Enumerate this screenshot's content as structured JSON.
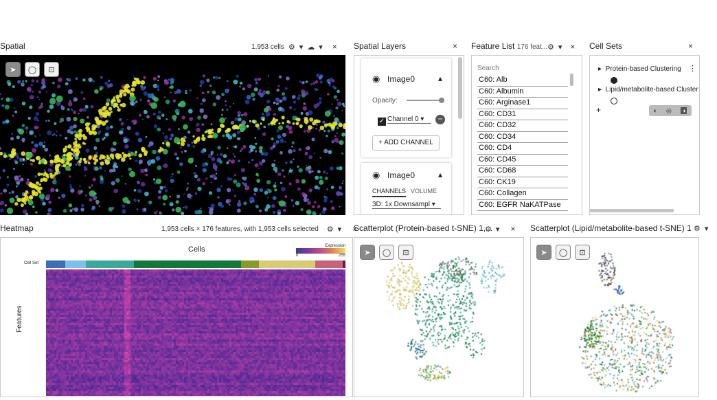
{
  "spatial": {
    "title": "Spatial",
    "cell_count": "1,953 cells"
  },
  "spatial_layers": {
    "title": "Spatial Layers",
    "image0_label": "Image0",
    "opacity_label": "Opacity:",
    "channel_label": "Channel 0",
    "add_channel": "ADD CHANNEL",
    "image0b_label": "Image0",
    "tab_channels": "CHANNELS",
    "tab_volume": "VOLUME",
    "resolution_value": "3D: 1x Downsampl"
  },
  "feature_list": {
    "title": "Feature List",
    "count": "176 feat...",
    "search_placeholder": "Search",
    "items": [
      "C60: Alb",
      "C60: Albumin",
      "C60: Arginase1",
      "C60: CD31",
      "C60: CD32",
      "C60: CD34",
      "C60: CD4",
      "C60: CD45",
      "C60: CD68",
      "C60: CK19",
      "C60: Collagen",
      "C60: EGFR NaKATPase"
    ]
  },
  "cell_sets": {
    "title": "Cell Sets",
    "items": [
      {
        "label": "Protein-based Clustering",
        "color": "#222222"
      },
      {
        "label": "Lipid/metabolite-based Cluster",
        "color": "#ffffff"
      }
    ],
    "add_symbol": "+"
  },
  "heatmap": {
    "title": "Heatmap",
    "info": "1,953 cells × 176 features, with 1,953 cells selected",
    "col_label": "Cells",
    "row_label": "Features",
    "cellset_label": "Cell Set",
    "legend_title": "Expression",
    "legend_min": "0",
    "legend_max": "255",
    "colorbar": [
      {
        "color": "#3d6fb6",
        "w": 28
      },
      {
        "color": "#7bc0e6",
        "w": 30
      },
      {
        "color": "#3aa89a",
        "w": 70
      },
      {
        "color": "#117a3a",
        "w": 156
      },
      {
        "color": "#8a9a2a",
        "w": 26
      },
      {
        "color": "#d8cc70",
        "w": 82
      },
      {
        "color": "#c8627a",
        "w": 40
      },
      {
        "color": "#6a1a40",
        "w": 4
      }
    ]
  },
  "scatter_protein": {
    "title": "Scatterplot (Protein-based t-SNE) 1,..."
  },
  "scatter_lipid": {
    "title": "Scatterplot (Lipid/metabolite-based t-SNE) 1"
  },
  "icons": {
    "gear": "⚙",
    "cloud": "☁",
    "close": "×",
    "caret": "▾",
    "pointer": "➤",
    "lasso": "◯",
    "recenter": "⊡",
    "eye": "◉",
    "expand": "▸",
    "collapse": "▴",
    "plus": "+",
    "minus": "−",
    "check": "✓",
    "menu": "⋮"
  }
}
